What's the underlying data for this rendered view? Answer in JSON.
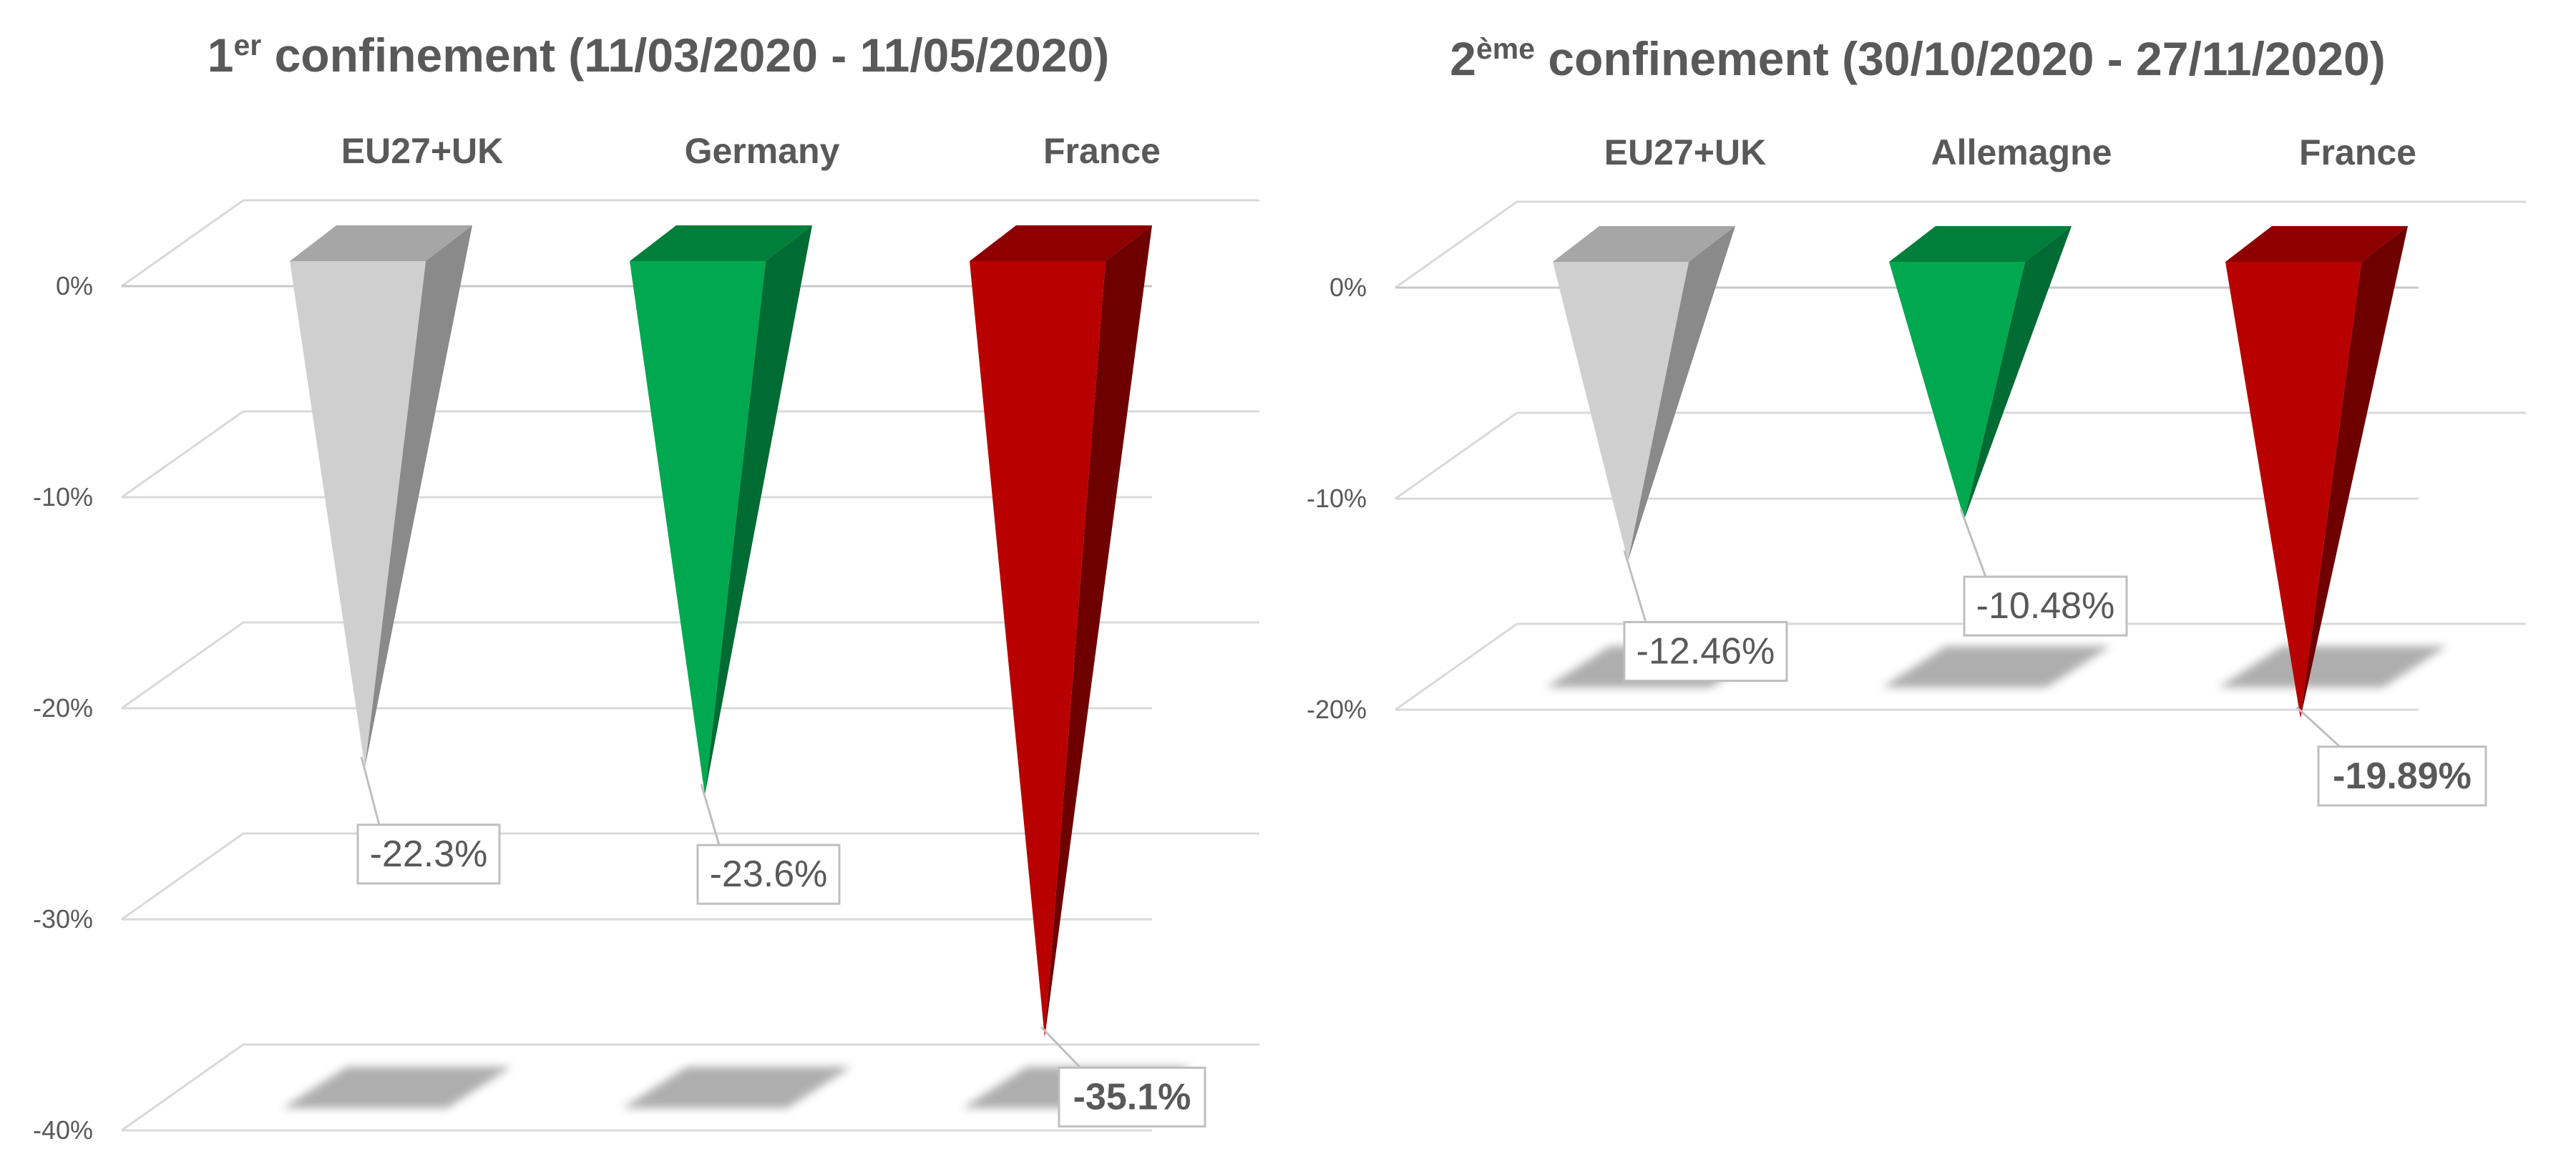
{
  "colors": {
    "gray": {
      "front": "#cfcfcf",
      "side": "#8a8a8a",
      "top": "#a6a6a6"
    },
    "green": {
      "front": "#00a84f",
      "side": "#006b32",
      "top": "#007f3a"
    },
    "red": {
      "front": "#b90000",
      "side": "#6e0000",
      "top": "#8e0000"
    },
    "text": "#595959",
    "grid": "#d9d9d9",
    "shadow": "#a6a6a6"
  },
  "chart_data": [
    {
      "type": "bar",
      "shape": "3d-cone",
      "title_main": "1",
      "title_sup": "er",
      "title_rest": " confinement (11/03/2020 - 11/05/2020)",
      "categories": [
        "EU27+UK",
        "Germany",
        "France"
      ],
      "values": [
        -22.3,
        -23.6,
        -35.1
      ],
      "data_labels": [
        "-22.3%",
        "-23.6%",
        "-35.1%"
      ],
      "bold_label": [
        false,
        false,
        true
      ],
      "color_keys": [
        "gray",
        "green",
        "red"
      ],
      "ylim": [
        -40,
        0
      ],
      "yticks": [
        0,
        -10,
        -20,
        -30,
        -40
      ],
      "ytick_labels": [
        "0%",
        "-10%",
        "-20%",
        "-30%",
        "-40%"
      ],
      "grid": true,
      "legend": "none"
    },
    {
      "type": "bar",
      "shape": "3d-cone",
      "title_main": "2",
      "title_sup": "ème",
      "title_rest": " confinement (30/10/2020 - 27/11/2020)",
      "categories": [
        "EU27+UK",
        "Allemagne",
        "France"
      ],
      "values": [
        -12.46,
        -10.48,
        -19.89
      ],
      "data_labels": [
        "-12.46%",
        "-10.48%",
        "-19.89%"
      ],
      "bold_label": [
        false,
        false,
        true
      ],
      "color_keys": [
        "gray",
        "green",
        "red"
      ],
      "ylim": [
        -20,
        0
      ],
      "yticks": [
        0,
        -10,
        -20
      ],
      "ytick_labels": [
        "0%",
        "-10%",
        "-20%"
      ],
      "grid": true,
      "legend": "none"
    }
  ]
}
